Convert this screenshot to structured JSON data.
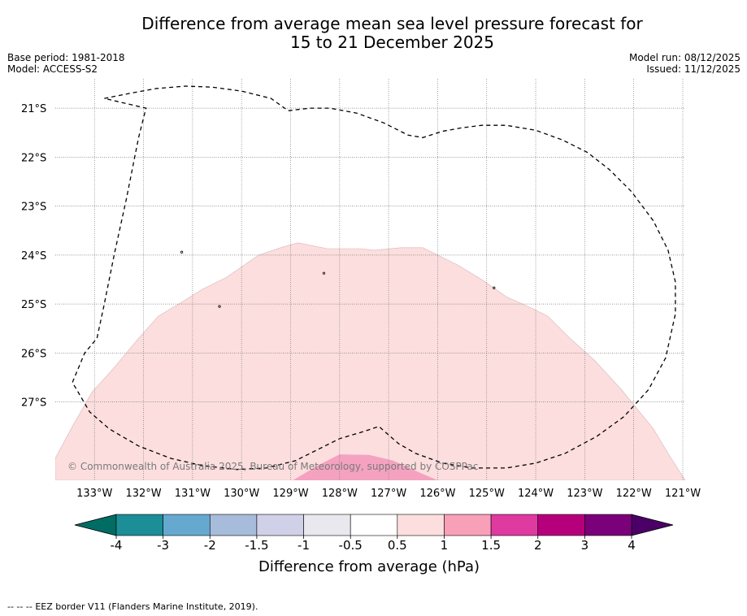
{
  "header": {
    "title_line1": "Difference from average mean sea level pressure forecast for",
    "title_line2": "15 to 21 December 2025",
    "base_period": "Base period: 1981-2018",
    "model": "Model: ACCESS-S2",
    "model_run": "Model run: 08/12/2025",
    "issued": "Issued: 11/12/2025"
  },
  "chart_data": {
    "type": "heatmap",
    "title": "Difference from average mean sea level pressure forecast for 15 to 21 December 2025",
    "variable": "mean sea level pressure anomaly",
    "units": "hPa",
    "x_axis": {
      "range": [
        -133.8,
        -120.95
      ],
      "ticks": [
        -133,
        -132,
        -131,
        -130,
        -129,
        -128,
        -127,
        -126,
        -125,
        -124,
        -123,
        -122,
        -121
      ],
      "tick_labels": [
        "133°W",
        "132°W",
        "131°W",
        "130°W",
        "129°W",
        "128°W",
        "127°W",
        "126°W",
        "125°W",
        "124°W",
        "123°W",
        "122°W",
        "121°W"
      ]
    },
    "y_axis": {
      "range": [
        -28.6,
        -20.4
      ],
      "ticks": [
        -21,
        -22,
        -23,
        -24,
        -25,
        -26,
        -27
      ],
      "tick_labels": [
        "21°S",
        "22°S",
        "23°S",
        "24°S",
        "25°S",
        "26°S",
        "27°S"
      ]
    },
    "grid": true,
    "contour_regions": [
      {
        "range_label": "0.5 to 1",
        "color": "#fcdede",
        "outline": [
          [
            -133.8,
            -28.15
          ],
          [
            -133.45,
            -27.5
          ],
          [
            -133.05,
            -26.8
          ],
          [
            -132.6,
            -26.3
          ],
          [
            -132.1,
            -25.7
          ],
          [
            -131.7,
            -25.25
          ],
          [
            -131.2,
            -24.95
          ],
          [
            -130.8,
            -24.7
          ],
          [
            -130.3,
            -24.45
          ],
          [
            -129.65,
            -24.0
          ],
          [
            -129.2,
            -23.85
          ],
          [
            -128.85,
            -23.75
          ],
          [
            -128.25,
            -23.87
          ],
          [
            -127.55,
            -23.87
          ],
          [
            -127.3,
            -23.9
          ],
          [
            -126.75,
            -23.85
          ],
          [
            -126.3,
            -23.85
          ],
          [
            -125.6,
            -24.2
          ],
          [
            -125.1,
            -24.5
          ],
          [
            -124.6,
            -24.85
          ],
          [
            -124.05,
            -25.1
          ],
          [
            -123.75,
            -25.25
          ],
          [
            -123.3,
            -25.7
          ],
          [
            -122.8,
            -26.15
          ],
          [
            -122.25,
            -26.75
          ],
          [
            -121.6,
            -27.55
          ],
          [
            -121.3,
            -28.05
          ],
          [
            -120.95,
            -28.6
          ],
          [
            -133.8,
            -28.6
          ]
        ]
      },
      {
        "range_label": "1 to 1.5",
        "color": "#f4a2c0",
        "outline": [
          [
            -128.95,
            -28.6
          ],
          [
            -128.45,
            -28.3
          ],
          [
            -128.0,
            -28.07
          ],
          [
            -127.4,
            -28.08
          ],
          [
            -126.9,
            -28.2
          ],
          [
            -126.35,
            -28.45
          ],
          [
            -126.0,
            -28.6
          ]
        ]
      }
    ],
    "eez_border": {
      "label": "EEZ border V11 (Flanders Marine Institute, 2019).",
      "path": [
        [
          -132.8,
          -20.8
        ],
        [
          -132.3,
          -20.7
        ],
        [
          -131.75,
          -20.6
        ],
        [
          -131.15,
          -20.55
        ],
        [
          -130.6,
          -20.57
        ],
        [
          -130.0,
          -20.65
        ],
        [
          -129.4,
          -20.8
        ],
        [
          -129.05,
          -21.05
        ],
        [
          -128.6,
          -21.0
        ],
        [
          -128.2,
          -21.0
        ],
        [
          -127.65,
          -21.1
        ],
        [
          -127.1,
          -21.3
        ],
        [
          -126.6,
          -21.55
        ],
        [
          -126.3,
          -21.6
        ],
        [
          -125.9,
          -21.47
        ],
        [
          -125.5,
          -21.4
        ],
        [
          -125.1,
          -21.35
        ],
        [
          -124.6,
          -21.35
        ],
        [
          -124.0,
          -21.45
        ],
        [
          -123.45,
          -21.65
        ],
        [
          -122.95,
          -21.9
        ],
        [
          -122.5,
          -22.25
        ],
        [
          -122.05,
          -22.7
        ],
        [
          -121.6,
          -23.3
        ],
        [
          -121.3,
          -23.9
        ],
        [
          -121.15,
          -24.55
        ],
        [
          -121.15,
          -25.2
        ],
        [
          -121.35,
          -26.1
        ],
        [
          -121.7,
          -26.75
        ],
        [
          -122.2,
          -27.3
        ],
        [
          -122.75,
          -27.7
        ],
        [
          -123.4,
          -28.05
        ],
        [
          -124.0,
          -28.25
        ],
        [
          -124.6,
          -28.35
        ],
        [
          -125.3,
          -28.35
        ],
        [
          -125.9,
          -28.25
        ],
        [
          -126.45,
          -28.05
        ],
        [
          -126.8,
          -27.85
        ],
        [
          -127.2,
          -27.5
        ],
        [
          -127.5,
          -27.6
        ],
        [
          -128.0,
          -27.75
        ],
        [
          -128.4,
          -27.95
        ],
        [
          -128.9,
          -28.2
        ],
        [
          -129.5,
          -28.35
        ],
        [
          -130.1,
          -28.38
        ],
        [
          -130.8,
          -28.3
        ],
        [
          -131.45,
          -28.15
        ],
        [
          -132.1,
          -27.9
        ],
        [
          -132.7,
          -27.55
        ],
        [
          -133.1,
          -27.2
        ],
        [
          -133.45,
          -26.6
        ],
        [
          -133.2,
          -26.0
        ],
        [
          -132.95,
          -25.7
        ],
        [
          -132.8,
          -25.0
        ],
        [
          -132.6,
          -24.0
        ],
        [
          -132.35,
          -22.85
        ],
        [
          -132.1,
          -21.6
        ],
        [
          -131.95,
          -21.0
        ],
        [
          -132.8,
          -20.8
        ]
      ]
    },
    "colorbar": {
      "label": "Difference from average (hPa)",
      "tick_labels": [
        "-4",
        "-3",
        "-2",
        "-1.5",
        "-1",
        "-0.5",
        "0.5",
        "1",
        "1.5",
        "2",
        "3",
        "4"
      ],
      "colors": [
        "#1b8e97",
        "#66a9d0",
        "#a7bbdb",
        "#d0d1e8",
        "#e9e8ee",
        "#ffffff",
        "#fcdede",
        "#f9a0b9",
        "#df3aa0",
        "#b6007b",
        "#7a0179"
      ],
      "extend_low_color": "#006d64",
      "extend_high_color": "#4a0066"
    },
    "copyright": "© Commonwealth of Australia 2025, Bureau of Meteorology, supported by COSPPac"
  },
  "footer": {
    "legend_prefix": "--  --  -- ",
    "legend_text": "EEZ border V11 (Flanders Marine Institute, 2019)."
  }
}
